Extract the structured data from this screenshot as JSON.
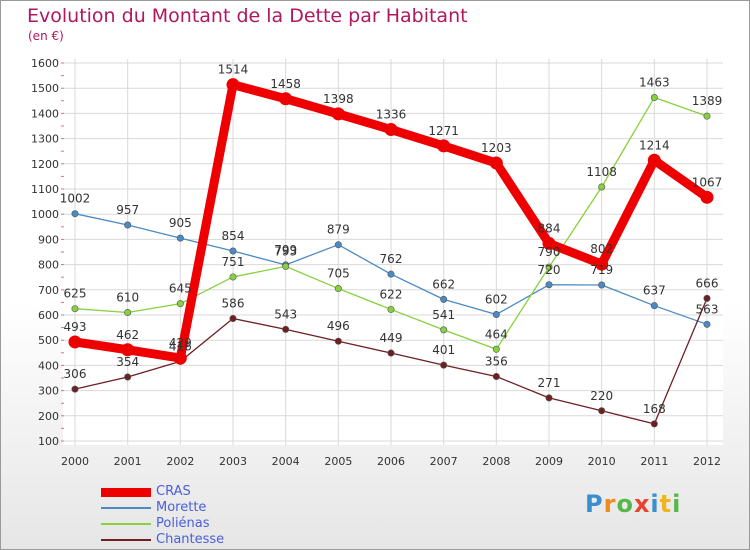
{
  "header": {
    "title": "Evolution du Montant de la Dette par Habitant",
    "subtitle": "(en €)"
  },
  "logo": {
    "text": "Proxiti"
  },
  "colors": {
    "title": "#b0175f",
    "legend_text": "#4a5ed8",
    "grid": "#d9d9d9",
    "axis_text": "#333333",
    "tick_marks": "#e36b8f"
  },
  "chart_data": {
    "type": "line",
    "title": "Evolution du Montant de la Dette par Habitant",
    "subtitle": "(en €)",
    "xlabel": "",
    "ylabel": "",
    "x": [
      2000,
      2001,
      2002,
      2003,
      2004,
      2005,
      2006,
      2007,
      2008,
      2009,
      2010,
      2011,
      2012
    ],
    "ylim": [
      100,
      1600
    ],
    "yticks": [
      100,
      200,
      300,
      400,
      500,
      600,
      700,
      800,
      900,
      1000,
      1100,
      1200,
      1300,
      1400,
      1500,
      1600
    ],
    "grid": true,
    "legend_position": "bottom-left",
    "series": [
      {
        "name": "CRAS",
        "color": "#ee0000",
        "emphasis": "thick",
        "values": [
          493,
          462,
          429,
          1514,
          1458,
          1398,
          1336,
          1271,
          1203,
          884,
          802,
          1214,
          1067
        ]
      },
      {
        "name": "Morette",
        "color": "#4a8ac6",
        "emphasis": "thin",
        "values": [
          1002,
          957,
          905,
          854,
          799,
          879,
          762,
          662,
          602,
          720,
          719,
          637,
          563
        ]
      },
      {
        "name": "Poliénas",
        "color": "#86d13d",
        "emphasis": "thin",
        "values": [
          625,
          610,
          645,
          751,
          793,
          705,
          622,
          541,
          464,
          790,
          1108,
          1463,
          1389
        ]
      },
      {
        "name": "Chantesse",
        "color": "#6e1f23",
        "emphasis": "thin",
        "values": [
          306,
          354,
          416,
          586,
          543,
          496,
          449,
          401,
          356,
          271,
          220,
          168,
          666
        ]
      }
    ]
  }
}
